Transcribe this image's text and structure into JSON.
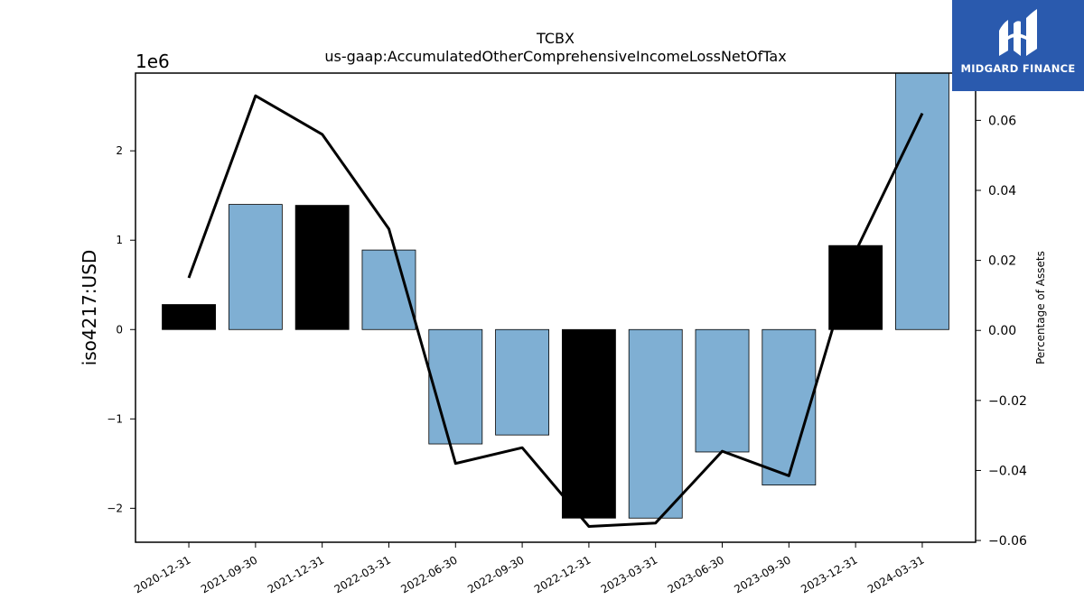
{
  "chart_data": {
    "type": "bar",
    "title": "TCBX",
    "subtitle": "us-gaap:AccumulatedOtherComprehensiveIncomeLossNetOfTax",
    "ylabel": "iso4217:USD",
    "y_offset_label": "1e6",
    "y2label": "Percentage of Assets",
    "categories": [
      "2020-12-31",
      "2021-09-30",
      "2021-12-31",
      "2022-03-31",
      "2022-06-30",
      "2022-09-30",
      "2022-12-31",
      "2023-03-31",
      "2023-06-30",
      "2023-09-30",
      "2023-12-31",
      "2024-03-31"
    ],
    "bar_values": [
      280000,
      1400000,
      1390000,
      890000,
      -1280000,
      -1180000,
      -2110000,
      -2110000,
      -1370000,
      -1740000,
      940000,
      2870000
    ],
    "bar_colors": [
      "#000000",
      "#7fafd3",
      "#000000",
      "#7fafd3",
      "#7fafd3",
      "#7fafd3",
      "#000000",
      "#7fafd3",
      "#7fafd3",
      "#7fafd3",
      "#000000",
      "#7fafd3"
    ],
    "line_values": [
      0.015,
      0.067,
      0.056,
      0.029,
      -0.038,
      -0.0335,
      -0.056,
      -0.055,
      -0.0345,
      -0.0415,
      0.0225,
      0.062
    ],
    "ylim": [
      -2380000,
      2870000
    ],
    "y2lim": [
      -0.0605,
      0.0735
    ],
    "yticks": [
      -2000000,
      -1000000,
      0,
      1000000,
      2000000
    ],
    "ytick_labels": [
      "−2",
      "−1",
      "0",
      "1",
      "2"
    ],
    "y2ticks": [
      -0.06,
      -0.04,
      -0.02,
      0.0,
      0.02,
      0.04,
      0.06
    ],
    "y2tick_labels": [
      "−0.06",
      "−0.04",
      "−0.02",
      "0.00",
      "0.02",
      "0.04",
      "0.06"
    ],
    "grid": false,
    "line_color": "#000000"
  },
  "logo": {
    "text": "MIDGARD FINANCE",
    "background": "#2a5aae"
  }
}
